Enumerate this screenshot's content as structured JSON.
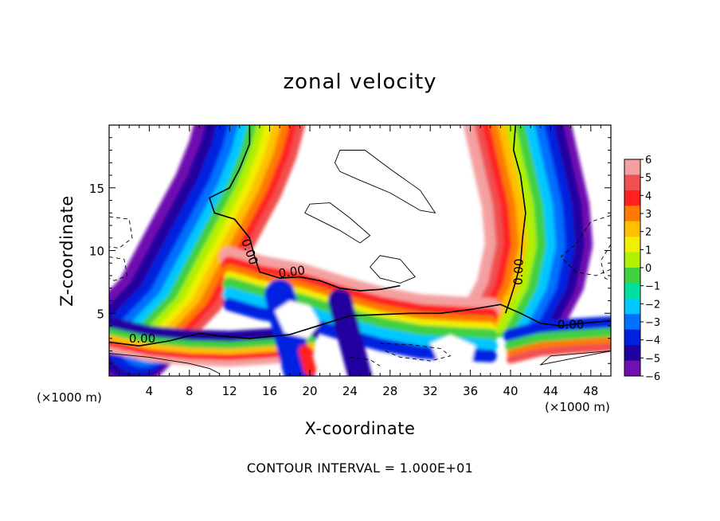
{
  "chart_data": {
    "type": "heatmap",
    "title": "zonal velocity",
    "xlabel": "X-coordinate",
    "ylabel": "Z-coordinate",
    "x_unit": "(×1000 m)",
    "footer": "CONTOUR INTERVAL = 1.000E+01",
    "xlim": [
      0,
      50
    ],
    "ylim": [
      0,
      20
    ],
    "x_ticks": [
      4,
      8,
      12,
      16,
      20,
      24,
      28,
      32,
      36,
      40,
      44,
      48
    ],
    "y_ticks": [
      5,
      10,
      15
    ],
    "colorbar": {
      "ticks": [
        6,
        5,
        4,
        3,
        2,
        1,
        0,
        -1,
        -2,
        -3,
        -4,
        -5,
        -6
      ],
      "colors": [
        "#f4a0a0",
        "#f05050",
        "#ff2020",
        "#ff7a00",
        "#ffc000",
        "#f0f000",
        "#b0f000",
        "#40d040",
        "#00e0a0",
        "#00c8ff",
        "#0070ff",
        "#0020e0",
        "#2000a0",
        "#7010b0"
      ]
    },
    "contour_labels": [
      "0.00",
      "0.00",
      "0.00",
      "0.00",
      "0.00"
    ],
    "zero_contours": [
      [
        [
          0,
          2.7
        ],
        [
          3,
          2.4
        ],
        [
          6,
          2.8
        ],
        [
          9,
          3.4
        ],
        [
          11,
          3.2
        ],
        [
          14,
          3.0
        ],
        [
          18,
          3.3
        ],
        [
          22,
          4.3
        ],
        [
          24,
          4.8
        ],
        [
          27,
          4.9
        ],
        [
          30,
          5.0
        ],
        [
          33,
          5.0
        ],
        [
          36,
          5.3
        ],
        [
          39,
          5.7
        ],
        [
          41,
          5.0
        ],
        [
          43,
          4.2
        ],
        [
          45,
          4.0
        ],
        [
          47,
          4.2
        ],
        [
          50,
          4.4
        ]
      ],
      [
        [
          14,
          20
        ],
        [
          14,
          18.5
        ],
        [
          13,
          16.5
        ],
        [
          12,
          15.0
        ],
        [
          10,
          14.2
        ],
        [
          10.5,
          13.0
        ],
        [
          12.5,
          12.5
        ],
        [
          14,
          11
        ],
        [
          14.5,
          9.5
        ],
        [
          15,
          8.3
        ],
        [
          17,
          7.8
        ],
        [
          19,
          7.9
        ],
        [
          21,
          7.6
        ],
        [
          23,
          7.0
        ],
        [
          25,
          6.8
        ],
        [
          27,
          6.9
        ],
        [
          29,
          7.2
        ]
      ],
      [
        [
          40.5,
          20
        ],
        [
          40.3,
          18
        ],
        [
          41,
          16
        ],
        [
          41.5,
          13
        ],
        [
          41.2,
          11
        ],
        [
          41,
          9
        ],
        [
          40.5,
          7.5
        ],
        [
          40,
          6.2
        ],
        [
          39.5,
          5
        ]
      ]
    ],
    "positive_closed_contours": [
      [
        [
          22.5,
          17
        ],
        [
          23,
          18
        ],
        [
          25.5,
          18
        ],
        [
          28,
          16.5
        ],
        [
          31,
          14.8
        ],
        [
          32.5,
          13.0
        ],
        [
          31,
          13.2
        ],
        [
          28,
          14.6
        ],
        [
          25,
          15.6
        ],
        [
          23,
          16.3
        ]
      ],
      [
        [
          19.5,
          13
        ],
        [
          20,
          13.7
        ],
        [
          22,
          13.8
        ],
        [
          24,
          12.6
        ],
        [
          26,
          11.2
        ],
        [
          25,
          10.6
        ],
        [
          23,
          11.6
        ],
        [
          21,
          12.4
        ]
      ],
      [
        [
          26,
          8.7
        ],
        [
          27,
          9.6
        ],
        [
          29,
          9.3
        ],
        [
          30.5,
          7.9
        ],
        [
          29,
          7.4
        ],
        [
          27,
          7.8
        ]
      ],
      [
        [
          0,
          1.8
        ],
        [
          4,
          1.5
        ],
        [
          8,
          1.0
        ],
        [
          10,
          0.6
        ],
        [
          11,
          0.2
        ]
      ],
      [
        [
          43,
          0.9
        ],
        [
          44,
          1.6
        ],
        [
          47,
          1.8
        ],
        [
          50,
          2.0
        ]
      ]
    ],
    "negative_contours": [
      [
        [
          0,
          12.7
        ],
        [
          2,
          12.5
        ],
        [
          2.3,
          11.0
        ],
        [
          1,
          10.2
        ],
        [
          0,
          10.3
        ]
      ],
      [
        [
          0,
          9.5
        ],
        [
          1.5,
          9.3
        ],
        [
          1.8,
          8.0
        ],
        [
          0.5,
          7.6
        ],
        [
          0,
          7.8
        ]
      ],
      [
        [
          50,
          12.8
        ],
        [
          48,
          12.3
        ],
        [
          46.5,
          10.5
        ],
        [
          45,
          9.5
        ],
        [
          46.5,
          8.3
        ],
        [
          48.5,
          8.0
        ],
        [
          50,
          8.5
        ]
      ],
      [
        [
          50,
          10.5
        ],
        [
          49,
          9.2
        ],
        [
          49.4,
          7.8
        ],
        [
          50,
          7.6
        ]
      ],
      [
        [
          27,
          2.6
        ],
        [
          30,
          2.5
        ],
        [
          33,
          2.2
        ],
        [
          34,
          1.6
        ],
        [
          32,
          1.2
        ],
        [
          29,
          1.5
        ],
        [
          27.5,
          2.0
        ]
      ],
      [
        [
          24,
          1.5
        ],
        [
          26,
          1.3
        ],
        [
          27,
          0.8
        ]
      ]
    ]
  }
}
